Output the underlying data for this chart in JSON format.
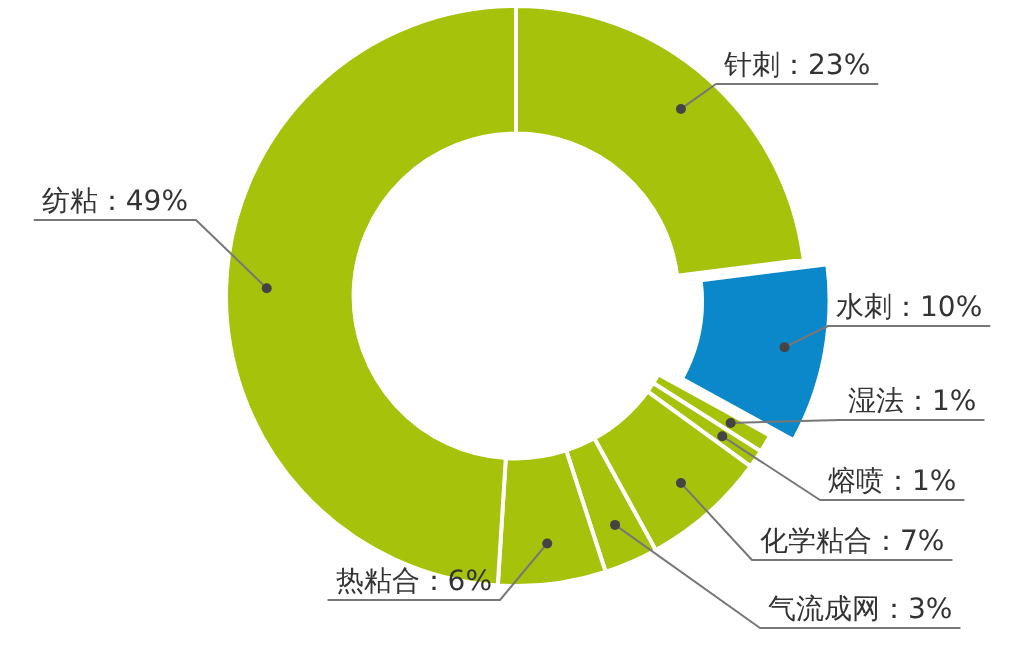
{
  "chart_data": {
    "type": "donut",
    "categories": [
      "针刺：23%",
      "水刺：10%",
      "湿法：1%",
      "熔喷：1%",
      "化学粘合：7%",
      "气流成网：3%",
      "热粘合：6%",
      "纺粘：49%"
    ],
    "values": [
      23,
      10,
      1,
      1,
      7,
      3,
      6,
      49
    ],
    "colors": [
      "#a6c20a",
      "#0a88c9",
      "#a6c20a",
      "#a6c20a",
      "#a6c20a",
      "#a6c20a",
      "#a6c20a",
      "#a6c20a"
    ]
  }
}
